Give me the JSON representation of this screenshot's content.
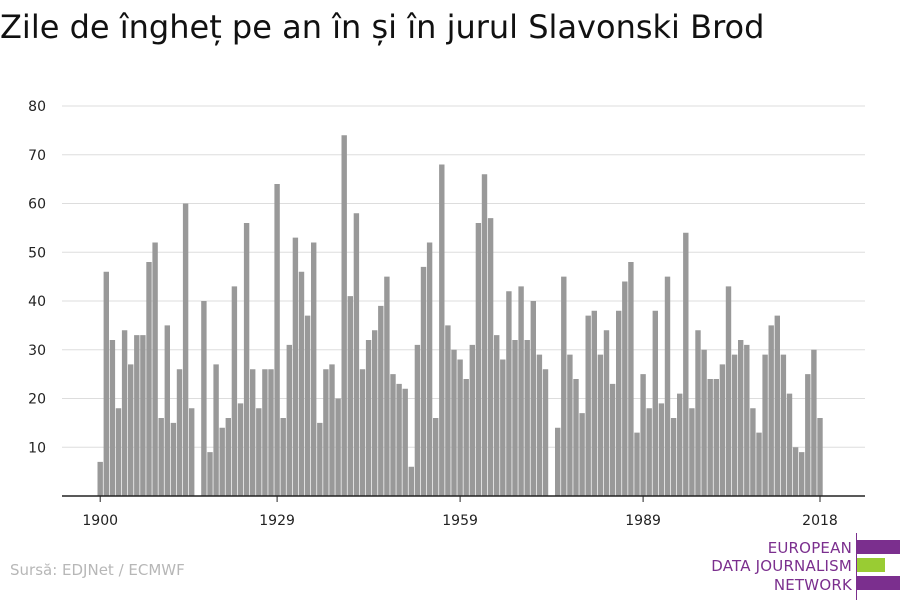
{
  "colors": {
    "bar": "#999999",
    "grid": "#dddddd",
    "axis": "#222222",
    "logo_purple": "#7b2f8e",
    "logo_green": "#99cc33"
  },
  "source": "Sursă: EDJNet / ECMWF",
  "logo": {
    "lines": [
      "EUROPEAN",
      "DATA JOURNALISM",
      "NETWORK"
    ]
  },
  "chart_data": {
    "type": "bar",
    "title": "Zile de îngheț pe an în și în jurul Slavonski Brod",
    "xlabel": "",
    "ylabel": "",
    "ylim": [
      0,
      80
    ],
    "y_ticks": [
      10,
      20,
      30,
      40,
      50,
      60,
      70,
      80
    ],
    "x_ticks": [
      1900,
      1929,
      1959,
      1989,
      2018
    ],
    "grid": true,
    "x": [
      1900,
      1901,
      1902,
      1903,
      1904,
      1905,
      1906,
      1907,
      1908,
      1909,
      1910,
      1911,
      1912,
      1913,
      1914,
      1915,
      1916,
      1917,
      1918,
      1919,
      1920,
      1921,
      1922,
      1923,
      1924,
      1925,
      1926,
      1927,
      1928,
      1929,
      1930,
      1931,
      1932,
      1933,
      1934,
      1935,
      1936,
      1937,
      1938,
      1939,
      1940,
      1941,
      1942,
      1943,
      1944,
      1945,
      1946,
      1947,
      1948,
      1949,
      1950,
      1951,
      1952,
      1953,
      1954,
      1955,
      1956,
      1957,
      1958,
      1959,
      1960,
      1961,
      1962,
      1963,
      1964,
      1965,
      1966,
      1967,
      1968,
      1969,
      1970,
      1971,
      1972,
      1973,
      1974,
      1975,
      1976,
      1977,
      1978,
      1979,
      1980,
      1981,
      1982,
      1983,
      1984,
      1985,
      1986,
      1987,
      1988,
      1989,
      1990,
      1991,
      1992,
      1993,
      1994,
      1995,
      1996,
      1997,
      1998,
      1999,
      2000,
      2001,
      2002,
      2003,
      2004,
      2005,
      2006,
      2007,
      2008,
      2009,
      2010,
      2011,
      2012,
      2013,
      2014,
      2015,
      2016,
      2017,
      2018
    ],
    "values": [
      7,
      46,
      32,
      18,
      34,
      27,
      33,
      33,
      48,
      52,
      16,
      35,
      15,
      26,
      60,
      18,
      0,
      40,
      9,
      27,
      14,
      16,
      43,
      19,
      56,
      26,
      18,
      26,
      26,
      64,
      16,
      31,
      53,
      46,
      37,
      52,
      15,
      26,
      27,
      20,
      74,
      41,
      58,
      26,
      32,
      34,
      39,
      45,
      25,
      23,
      22,
      6,
      31,
      47,
      52,
      16,
      68,
      35,
      30,
      28,
      24,
      31,
      56,
      66,
      57,
      33,
      28,
      42,
      32,
      43,
      32,
      40,
      29,
      26,
      0,
      14,
      45,
      29,
      24,
      17,
      37,
      38,
      29,
      34,
      23,
      38,
      44,
      48,
      13,
      25,
      18,
      38,
      19,
      45,
      16,
      21,
      54,
      18,
      34,
      30,
      24,
      24,
      27,
      43,
      29,
      32,
      31,
      18,
      13,
      29,
      35,
      37,
      29,
      21,
      10,
      9,
      25,
      30,
      16
    ]
  }
}
